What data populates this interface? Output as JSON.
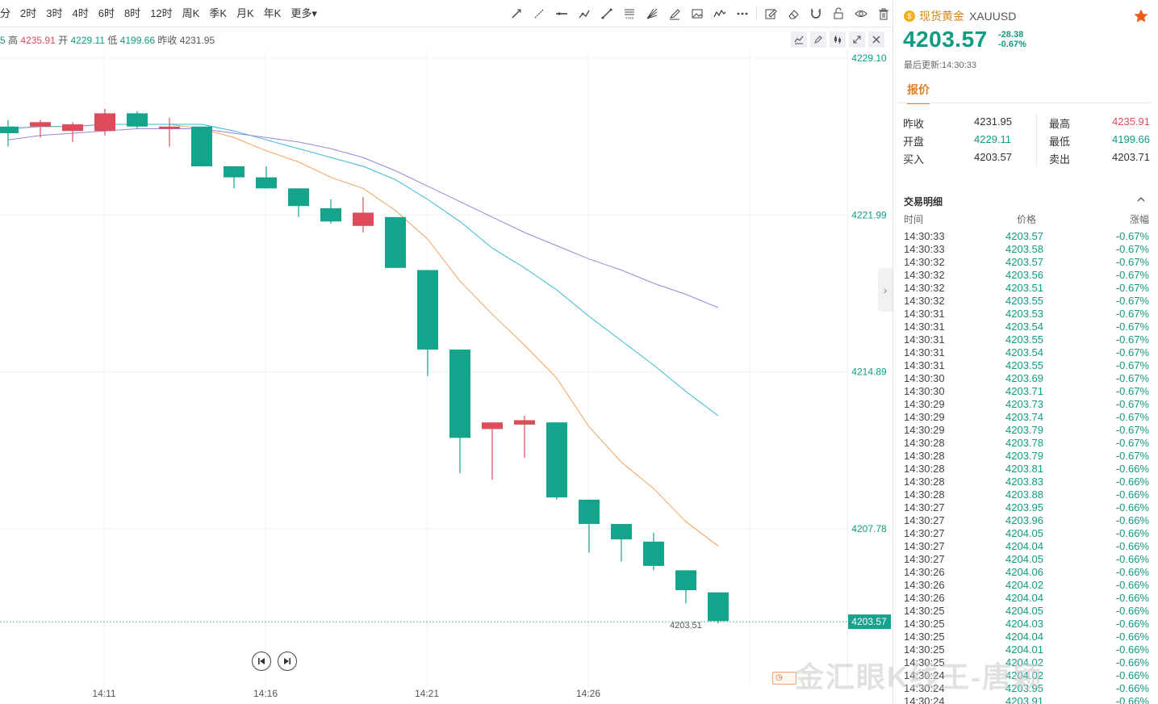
{
  "toolbar": {
    "periods": [
      "分",
      "2时",
      "3时",
      "4时",
      "6时",
      "8时",
      "12时",
      "周K",
      "季K",
      "月K",
      "年K",
      "更多"
    ],
    "tool_icons": [
      "trend-line-icon",
      "ray-line-icon",
      "horizontal-line-icon",
      "path-icon",
      "segment-icon",
      "fibonacci-icon",
      "fan-icon",
      "brush-icon",
      "image-icon",
      "wave-icon",
      "more-dots-icon",
      "note-icon",
      "eraser-icon",
      "magnet-icon",
      "lock-icon",
      "eye-icon",
      "trash-icon"
    ]
  },
  "infobar": {
    "prefix": "5",
    "high_label": "高",
    "high": "4235.91",
    "open_label": "开",
    "open": "4229.11",
    "low_label": "低",
    "low": "4199.66",
    "prev_label": "昨收",
    "prev": "4231.95"
  },
  "chart_data": {
    "type": "candlestick",
    "x_ticks": [
      "14:11",
      "14:16",
      "14:21",
      "14:26"
    ],
    "y_ticks": [
      "4229.10",
      "4221.99",
      "4214.89",
      "4207.78"
    ],
    "last_price_label": "4203.57",
    "min_price_label": "4203.51",
    "candles": [
      {
        "o": 4226.0,
        "h": 4226.3,
        "l": 4225.1,
        "c": 4225.7
      },
      {
        "o": 4226.0,
        "h": 4226.3,
        "l": 4225.5,
        "c": 4226.2
      },
      {
        "o": 4225.8,
        "h": 4226.2,
        "l": 4225.3,
        "c": 4226.1
      },
      {
        "o": 4225.8,
        "h": 4226.8,
        "l": 4225.6,
        "c": 4226.6
      },
      {
        "o": 4226.6,
        "h": 4226.7,
        "l": 4225.9,
        "c": 4226.0
      },
      {
        "o": 4225.9,
        "h": 4226.4,
        "l": 4225.1,
        "c": 4226.0
      },
      {
        "o": 4226.0,
        "h": 4226.0,
        "l": 4224.2,
        "c": 4224.2
      },
      {
        "o": 4224.2,
        "h": 4224.2,
        "l": 4223.2,
        "c": 4223.7
      },
      {
        "o": 4223.7,
        "h": 4224.2,
        "l": 4223.2,
        "c": 4223.2
      },
      {
        "o": 4223.2,
        "h": 4223.2,
        "l": 4221.9,
        "c": 4222.4
      },
      {
        "o": 4222.3,
        "h": 4222.7,
        "l": 4221.6,
        "c": 4221.7
      },
      {
        "o": 4221.5,
        "h": 4222.8,
        "l": 4221.2,
        "c": 4222.1
      },
      {
        "o": 4221.9,
        "h": 4221.9,
        "l": 4219.6,
        "c": 4219.6
      },
      {
        "o": 4219.5,
        "h": 4219.5,
        "l": 4214.7,
        "c": 4215.9
      },
      {
        "o": 4215.9,
        "h": 4215.9,
        "l": 4210.3,
        "c": 4211.9
      },
      {
        "o": 4212.3,
        "h": 4212.5,
        "l": 4210.0,
        "c": 4212.6
      },
      {
        "o": 4212.5,
        "h": 4212.9,
        "l": 4211.0,
        "c": 4212.7
      },
      {
        "o": 4212.6,
        "h": 4212.6,
        "l": 4209.1,
        "c": 4209.2
      },
      {
        "o": 4209.1,
        "h": 4209.1,
        "l": 4206.7,
        "c": 4208.0
      },
      {
        "o": 4208.0,
        "h": 4208.0,
        "l": 4206.3,
        "c": 4207.3
      },
      {
        "o": 4207.2,
        "h": 4207.6,
        "l": 4205.9,
        "c": 4206.1
      },
      {
        "o": 4205.9,
        "h": 4205.9,
        "l": 4204.4,
        "c": 4205.0
      },
      {
        "o": 4204.9,
        "h": 4204.9,
        "l": 4203.5,
        "c": 4203.6
      }
    ],
    "moving_averages": [
      {
        "color": "#f5a05a",
        "values": [
          4225.9,
          4226.0,
          4226.0,
          4226.1,
          4226.1,
          4226.1,
          4225.9,
          4225.5,
          4224.9,
          4224.4,
          4223.7,
          4223.2,
          4222.2,
          4220.9,
          4219.0,
          4217.5,
          4216.1,
          4214.6,
          4212.4,
          4210.8,
          4209.6,
          4208.1,
          4207.0
        ]
      },
      {
        "color": "#35b8d8",
        "values": [
          4225.9,
          4226.0,
          4226.0,
          4226.1,
          4226.1,
          4226.1,
          4226.1,
          4225.8,
          4225.4,
          4225.0,
          4224.6,
          4224.2,
          4223.6,
          4222.7,
          4221.7,
          4220.5,
          4219.6,
          4218.6,
          4217.4,
          4216.3,
          4215.2,
          4214.0,
          4212.9
        ]
      },
      {
        "color": "#9b84d8",
        "values": [
          4225.4,
          4225.6,
          4225.7,
          4225.8,
          4225.9,
          4225.9,
          4225.9,
          4225.7,
          4225.5,
          4225.3,
          4225.0,
          4224.6,
          4224.0,
          4223.3,
          4222.6,
          4221.9,
          4221.2,
          4220.6,
          4220.0,
          4219.5,
          4218.9,
          4218.4,
          4217.8
        ]
      }
    ],
    "colors": {
      "up": "#e04b5b",
      "down": "#14a38b",
      "grid": "#f0f0f0"
    }
  },
  "right": {
    "symbol_name": "现货黄金",
    "symbol_code": "XAUUSD",
    "price": "4203.57",
    "change": "-28.38",
    "change_pct": "-0.67%",
    "updated": "最后更新:14:30:33",
    "tab": "报价",
    "quote": {
      "prev_label": "昨收",
      "prev": "4231.95",
      "open_label": "开盘",
      "open": "4229.11",
      "bid_label": "买入",
      "bid": "4203.57",
      "high_label": "最高",
      "high": "4235.91",
      "low_label": "最低",
      "low": "4199.66",
      "ask_label": "卖出",
      "ask": "4203.71"
    },
    "trades_title": "交易明细",
    "col_time": "时间",
    "col_price": "价格",
    "col_chg": "涨幅",
    "trades": [
      [
        "14:30:33",
        "4203.57",
        "-0.67%"
      ],
      [
        "14:30:33",
        "4203.58",
        "-0.67%"
      ],
      [
        "14:30:32",
        "4203.57",
        "-0.67%"
      ],
      [
        "14:30:32",
        "4203.56",
        "-0.67%"
      ],
      [
        "14:30:32",
        "4203.51",
        "-0.67%"
      ],
      [
        "14:30:32",
        "4203.55",
        "-0.67%"
      ],
      [
        "14:30:31",
        "4203.53",
        "-0.67%"
      ],
      [
        "14:30:31",
        "4203.54",
        "-0.67%"
      ],
      [
        "14:30:31",
        "4203.55",
        "-0.67%"
      ],
      [
        "14:30:31",
        "4203.54",
        "-0.67%"
      ],
      [
        "14:30:31",
        "4203.55",
        "-0.67%"
      ],
      [
        "14:30:30",
        "4203.69",
        "-0.67%"
      ],
      [
        "14:30:30",
        "4203.71",
        "-0.67%"
      ],
      [
        "14:30:29",
        "4203.73",
        "-0.67%"
      ],
      [
        "14:30:29",
        "4203.74",
        "-0.67%"
      ],
      [
        "14:30:29",
        "4203.79",
        "-0.67%"
      ],
      [
        "14:30:28",
        "4203.78",
        "-0.67%"
      ],
      [
        "14:30:28",
        "4203.79",
        "-0.67%"
      ],
      [
        "14:30:28",
        "4203.81",
        "-0.66%"
      ],
      [
        "14:30:28",
        "4203.83",
        "-0.66%"
      ],
      [
        "14:30:28",
        "4203.88",
        "-0.66%"
      ],
      [
        "14:30:27",
        "4203.95",
        "-0.66%"
      ],
      [
        "14:30:27",
        "4203.96",
        "-0.66%"
      ],
      [
        "14:30:27",
        "4204.05",
        "-0.66%"
      ],
      [
        "14:30:27",
        "4204.04",
        "-0.66%"
      ],
      [
        "14:30:27",
        "4204.05",
        "-0.66%"
      ],
      [
        "14:30:26",
        "4204.06",
        "-0.66%"
      ],
      [
        "14:30:26",
        "4204.02",
        "-0.66%"
      ],
      [
        "14:30:26",
        "4204.04",
        "-0.66%"
      ],
      [
        "14:30:25",
        "4204.05",
        "-0.66%"
      ],
      [
        "14:30:25",
        "4204.03",
        "-0.66%"
      ],
      [
        "14:30:25",
        "4204.04",
        "-0.66%"
      ],
      [
        "14:30:25",
        "4204.01",
        "-0.66%"
      ],
      [
        "14:30:25",
        "4204.02",
        "-0.66%"
      ],
      [
        "14:30:24",
        "4204.02",
        "-0.66%"
      ],
      [
        "14:30:24",
        "4203.95",
        "-0.66%"
      ],
      [
        "14:30:24",
        "4203.91",
        "-0.66%"
      ]
    ]
  },
  "watermark": "金汇眼K线王-唐颖"
}
